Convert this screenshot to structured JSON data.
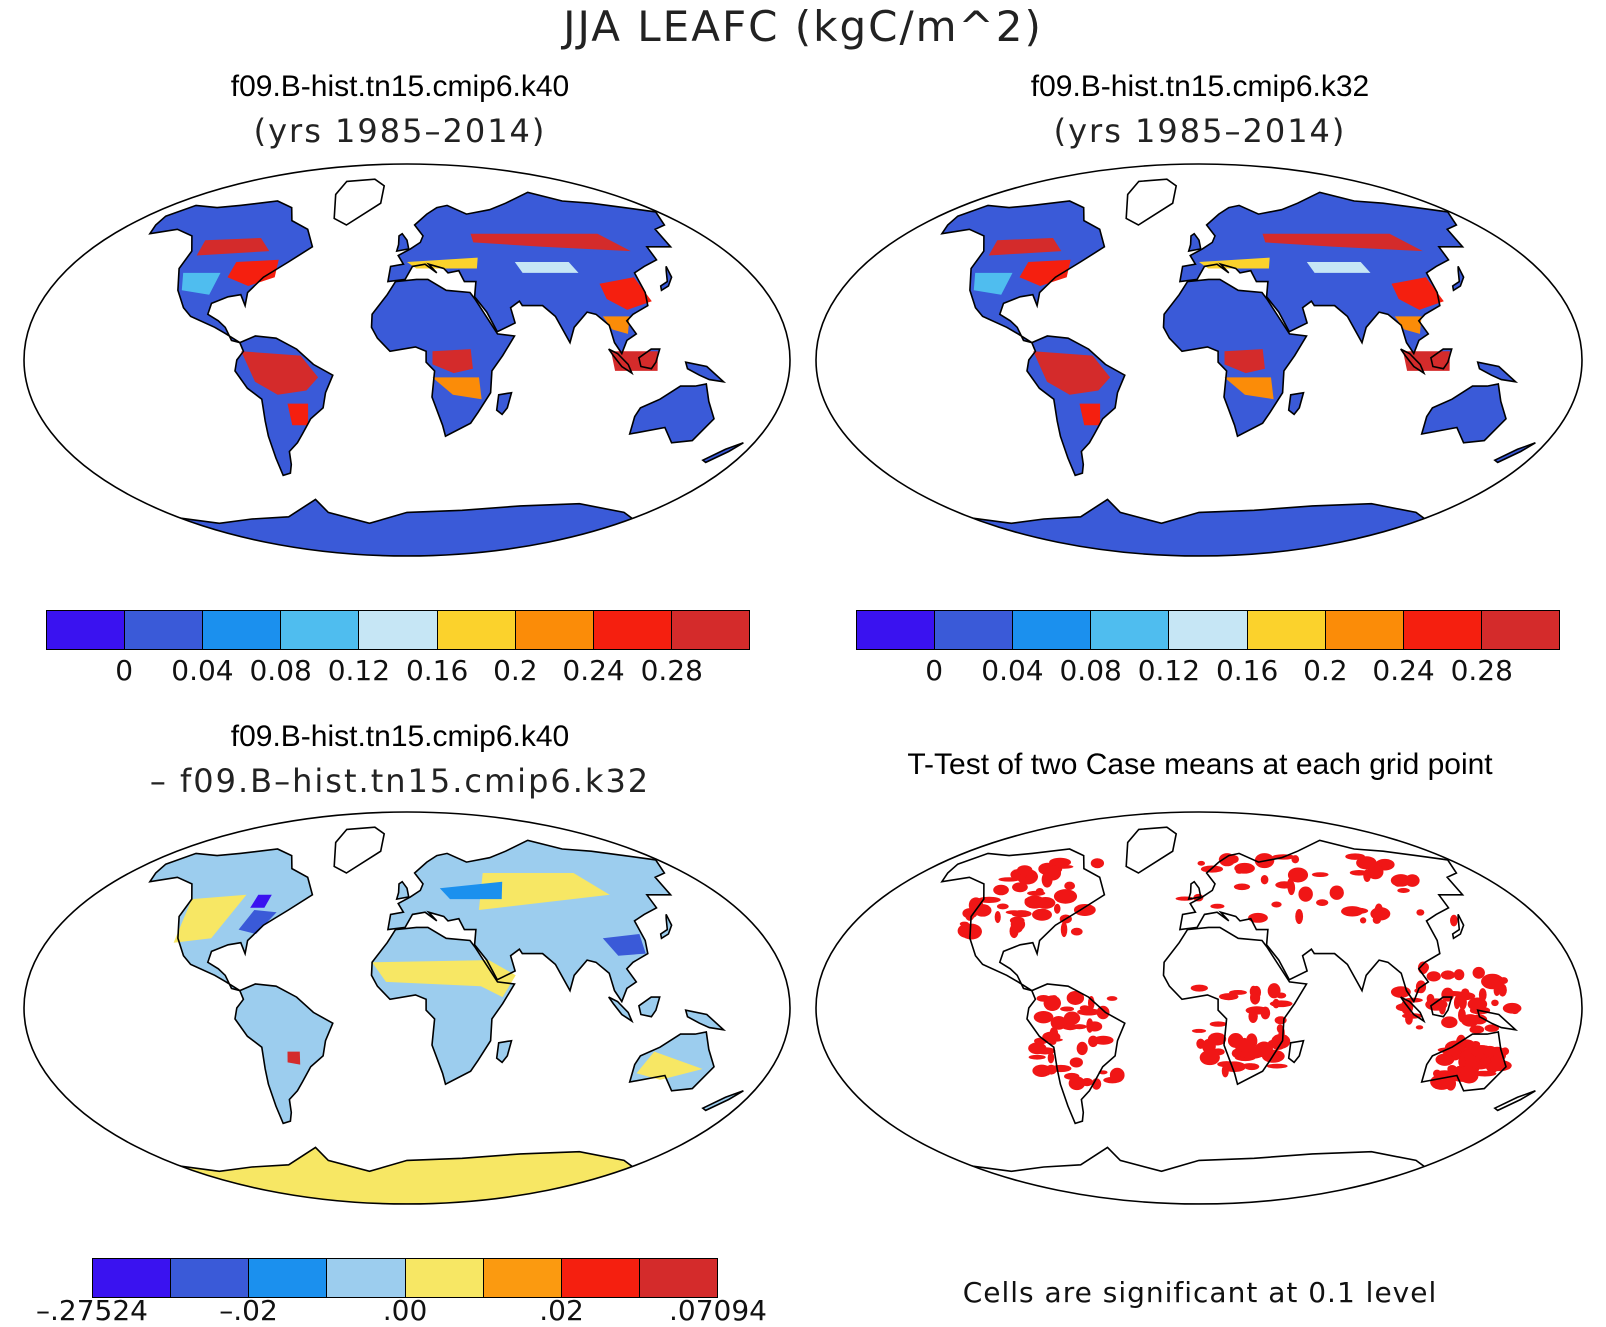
{
  "title": "JJA LEAFC (kgC/m^2)",
  "panels": {
    "case1": {
      "title": "f09.B-hist.tn15.cmip6.k40",
      "subtitle": "(yrs 1985–2014)"
    },
    "case2": {
      "title": "f09.B-hist.tn15.cmip6.k32",
      "subtitle": "(yrs 1985–2014)"
    },
    "diff": {
      "title": "f09.B-hist.tn15.cmip6.k40",
      "subtitle": "– f09.B–hist.tn15.cmip6.k32"
    },
    "ttest": {
      "title": "T-Test of two Case means at each grid point",
      "note": "Cells are significant at 0.1 level"
    }
  },
  "colorbars": {
    "case": {
      "colors": [
        "#3a12f0",
        "#3a5ad8",
        "#1b90ee",
        "#4fbdef",
        "#c6e6f5",
        "#fbd22c",
        "#fb8c08",
        "#f51f0f",
        "#d42b2b"
      ],
      "ticks": [
        "0",
        "0.04",
        "0.08",
        "0.12",
        "0.16",
        "0.2",
        "0.24",
        "0.28"
      ]
    },
    "diff": {
      "colors": [
        "#3a12f0",
        "#3a5ad8",
        "#1b90ee",
        "#9ccdee",
        "#f7e764",
        "#fb9a10",
        "#f51f0f",
        "#d42b2b"
      ],
      "ticks": [
        "–.27524",
        "–.02",
        ".00",
        ".02",
        ".07094"
      ]
    }
  },
  "map_colors": {
    "ocean": "#ffffff",
    "outline": "#000000",
    "significant": "#f01616"
  }
}
